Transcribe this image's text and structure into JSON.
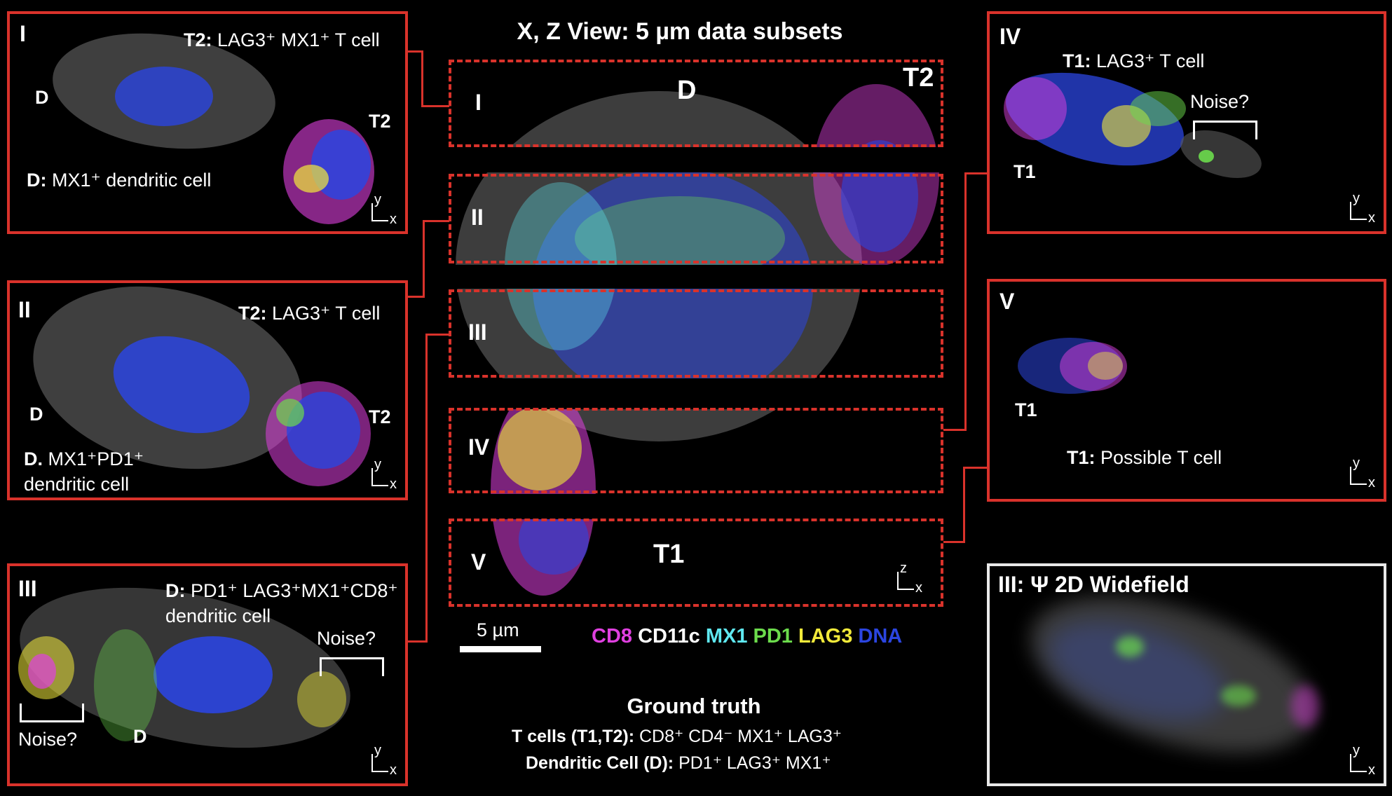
{
  "title": "X, Z View: 5 µm data subsets",
  "center": {
    "sections": [
      "I",
      "II",
      "III",
      "IV",
      "V"
    ],
    "label_D": "D",
    "label_T2": "T2",
    "label_T1": "T1",
    "axes": {
      "y": "z",
      "x": "x"
    }
  },
  "scale_bar": "5 µm",
  "legend": [
    {
      "name": "CD8",
      "color": "#e040e0"
    },
    {
      "name": "CD11c",
      "color": "#ffffff"
    },
    {
      "name": "MX1",
      "color": "#5fe8f0"
    },
    {
      "name": "PD1",
      "color": "#6cdc4c"
    },
    {
      "name": "LAG3",
      "color": "#f2ea3a"
    },
    {
      "name": "DNA",
      "color": "#2b45e0"
    }
  ],
  "ground_truth": {
    "heading": "Ground truth",
    "line1_bold": "T cells (T1,T2):",
    "line1_text": " CD8⁺ CD4⁻ MX1⁺ LAG3⁺",
    "line2_bold": "Dendritic Cell (D):",
    "line2_text": " PD1⁺ LAG3⁺ MX1⁺"
  },
  "panels": {
    "I": {
      "roman": "I",
      "title_bold": "T2:",
      "title_text": " LAG3⁺ MX1⁺ T cell",
      "D": "D",
      "T": "T2",
      "desc_bold": "D:",
      "desc_text": " MX1⁺ dendritic cell"
    },
    "II": {
      "roman": "II",
      "title_bold": "T2:",
      "title_text": " LAG3⁺ T cell",
      "D": "D",
      "T": "T2",
      "desc_bold": "D.",
      "desc_text": " MX1⁺PD1⁺",
      "desc_line2": "dendritic cell"
    },
    "III": {
      "roman": "III",
      "title_bold": "D:",
      "title_text": " PD1⁺ LAG3⁺MX1⁺CD8⁺",
      "title_line2": "dendritic cell",
      "noise_right": "Noise?",
      "noise_left": "Noise?",
      "D": "D"
    },
    "IV": {
      "roman": "IV",
      "title_bold": "T1:",
      "title_text": " LAG3⁺ T cell",
      "noise": "Noise?",
      "T": "T1"
    },
    "V": {
      "roman": "V",
      "T": "T1",
      "desc_bold": "T1:",
      "desc_text": " Possible  T cell"
    },
    "W": {
      "title": "III: Ψ 2D Widefield"
    }
  },
  "axes_small": {
    "y": "y",
    "x": "x"
  }
}
